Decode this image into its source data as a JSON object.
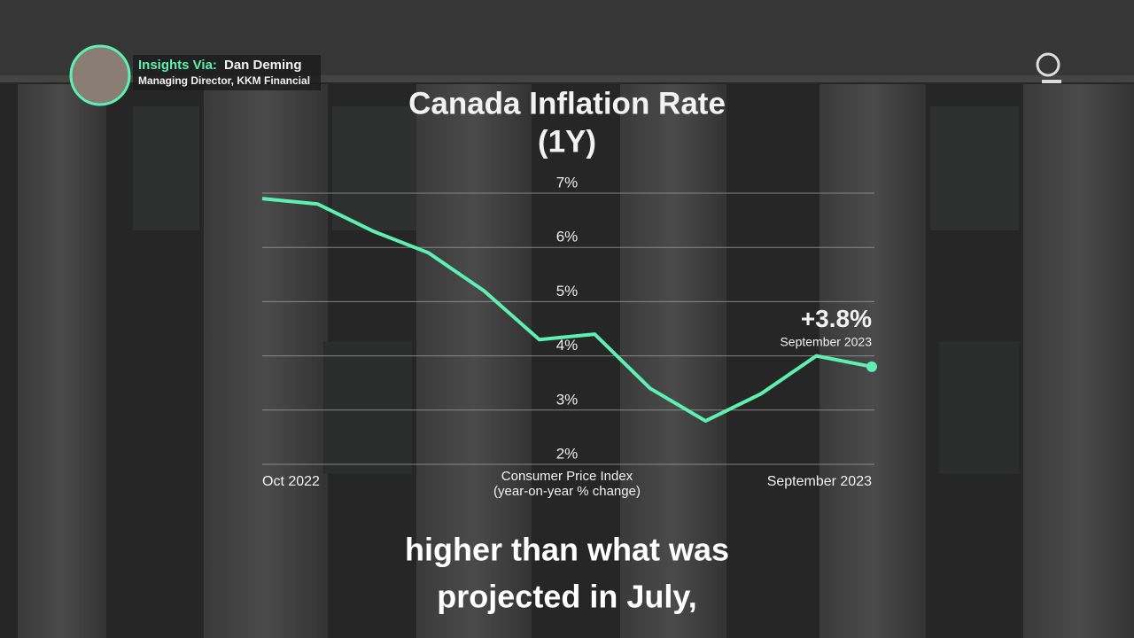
{
  "presenter": {
    "label": "Insights Via:",
    "name": "Dan Deming",
    "role": "Managing Director, KKM Financial"
  },
  "caption": [
    "higher than what was",
    "projected in July,"
  ],
  "chart_data": {
    "type": "line",
    "title": [
      "Canada Inflation Rate",
      "(1Y)"
    ],
    "x_label": [
      "Consumer Price Index",
      "(year-on-year % change)"
    ],
    "categories": [
      "Oct 2022",
      null,
      null,
      null,
      null,
      null,
      null,
      null,
      null,
      null,
      null,
      "September 2023"
    ],
    "values": [
      6.9,
      6.8,
      6.3,
      5.9,
      5.2,
      4.3,
      4.4,
      3.4,
      2.8,
      3.3,
      4.0,
      3.8
    ],
    "value_labels": [
      null,
      null,
      null,
      null,
      null,
      null,
      null,
      null,
      null,
      null,
      null,
      "+3.8%"
    ],
    "value_label_note": "September 2023",
    "color": "#5ef0b0",
    "ylim": [
      2,
      7
    ],
    "yticks": [
      {
        "value": 2,
        "label": "2%"
      },
      {
        "value": 3,
        "label": "3%"
      },
      {
        "value": 4,
        "label": "4%"
      },
      {
        "value": 5,
        "label": "5%"
      },
      {
        "value": 6,
        "label": "6%"
      },
      {
        "value": 7,
        "label": "7%"
      }
    ],
    "grid": true
  }
}
